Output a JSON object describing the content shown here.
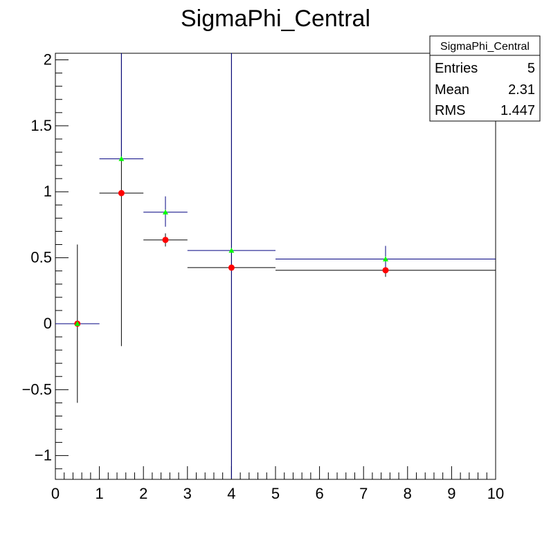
{
  "chart_data": {
    "type": "scatter",
    "title": "SigmaPhi_Central",
    "xlabel": "",
    "ylabel": "",
    "xlim": [
      0,
      10
    ],
    "ylim": [
      -1.18,
      2.05
    ],
    "x_ticks": [
      0,
      1,
      2,
      3,
      4,
      5,
      6,
      7,
      8,
      9,
      10
    ],
    "x_tick_labels": [
      "0",
      "1",
      "2",
      "3",
      "4",
      "5",
      "6",
      "7",
      "8",
      "9",
      "10"
    ],
    "y_ticks": [
      -1,
      -0.5,
      0,
      0.5,
      1,
      1.5,
      2
    ],
    "y_tick_labels": [
      "−1",
      "−0.5",
      "0",
      "0.5",
      "1",
      "1.5",
      "2"
    ],
    "grid": false,
    "stats_box": {
      "title": "SigmaPhi_Central",
      "rows": [
        {
          "label": "Entries",
          "value": "5"
        },
        {
          "label": "Mean",
          "value": "2.31"
        },
        {
          "label": "RMS",
          "value": "1.447"
        }
      ]
    },
    "series": [
      {
        "marker": "circle",
        "color": "#ff0000",
        "error_color": "#000000",
        "points": [
          {
            "x": 0.5,
            "y": 0.0,
            "xerr": 0.5,
            "yerr_low": 0.6,
            "yerr_high": 0.6
          },
          {
            "x": 1.5,
            "y": 0.99,
            "xerr": 0.5,
            "yerr_low": 1.16,
            "yerr_high": 1.06
          },
          {
            "x": 2.5,
            "y": 0.635,
            "xerr": 0.5,
            "yerr_low": 0.05,
            "yerr_high": 0.05
          },
          {
            "x": 4.0,
            "y": 0.425,
            "xerr": 1.0,
            "yerr_low": 1.6,
            "yerr_high": 1.63
          },
          {
            "x": 7.5,
            "y": 0.405,
            "xerr": 2.5,
            "yerr_low": 0.05,
            "yerr_high": 0.05
          }
        ]
      },
      {
        "marker": "triangle",
        "color": "#00ff00",
        "error_color": "#000080",
        "points": [
          {
            "x": 0.5,
            "y": 0.0,
            "xerr": 0.5,
            "yerr_low": 0.0,
            "yerr_high": 0.0
          },
          {
            "x": 1.5,
            "y": 1.25,
            "xerr": 0.5,
            "yerr_low": 0.0,
            "yerr_high": 0.8
          },
          {
            "x": 2.5,
            "y": 0.845,
            "xerr": 0.5,
            "yerr_low": 0.11,
            "yerr_high": 0.12
          },
          {
            "x": 4.0,
            "y": 0.555,
            "xerr": 1.0,
            "yerr_low": 1.73,
            "yerr_high": 1.5
          },
          {
            "x": 7.5,
            "y": 0.49,
            "xerr": 2.5,
            "yerr_low": 0.09,
            "yerr_high": 0.1
          }
        ]
      }
    ]
  }
}
